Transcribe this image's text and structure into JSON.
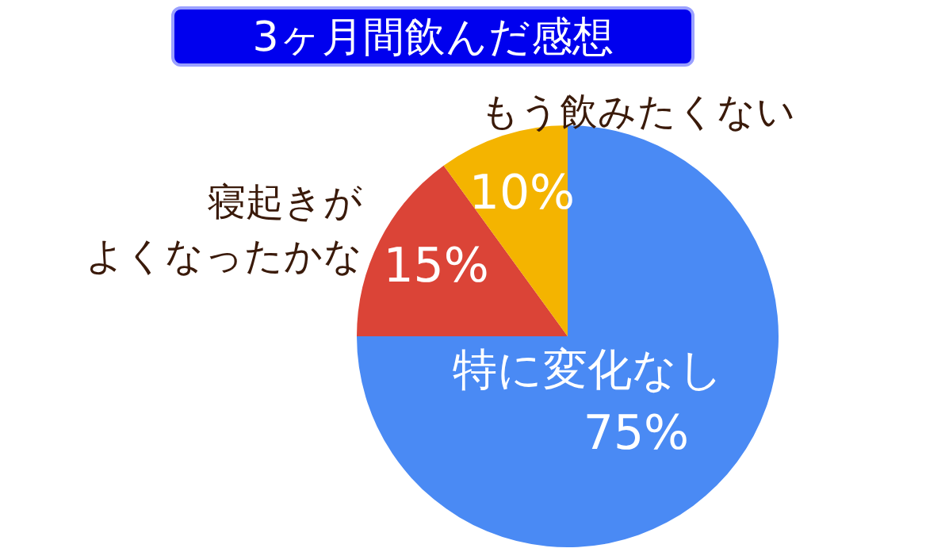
{
  "chart_data": {
    "type": "pie",
    "title": "3ヶ月間飲んだ感想",
    "categories": [
      "特に変化なし",
      "寝起きがよくなったかな",
      "もう飲みたくない"
    ],
    "values": [
      75,
      15,
      10
    ],
    "colors": [
      "#4a8af4",
      "#db4437",
      "#f4b400"
    ],
    "value_labels": [
      "75%",
      "15%",
      "10%"
    ],
    "legend": false
  }
}
